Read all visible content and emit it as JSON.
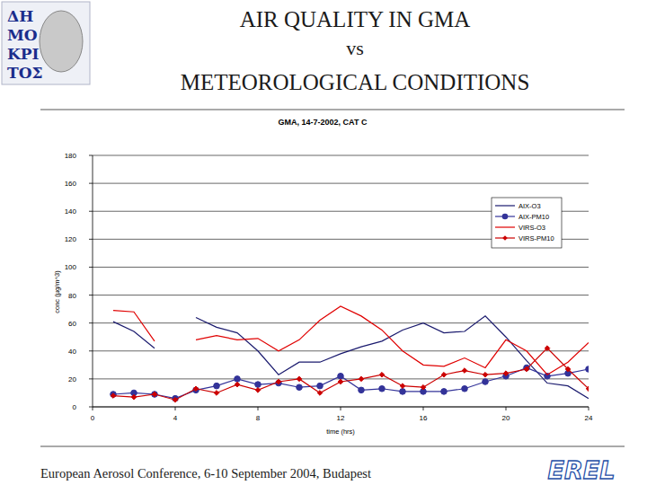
{
  "slide": {
    "title_lines": [
      "AIR QUALITY IN GMA",
      "vs",
      "METEOROLOGICAL CONDITIONS"
    ],
    "logo_text": [
      "ΔΗ",
      "ΜΟ",
      "ΚΡΙ",
      "ΤΟΣ"
    ],
    "footer": "European Aerosol Conference, 6-10 September 2004, Budapest",
    "brand": "EREL"
  },
  "chart_data": {
    "type": "line",
    "title": "GMA, 14-7-2002, CAT C",
    "x_label": "time (hrs)",
    "y_label": "conc (µg/m^3)",
    "x": [
      1,
      2,
      3,
      4,
      5,
      6,
      7,
      8,
      9,
      10,
      11,
      12,
      13,
      14,
      15,
      16,
      17,
      18,
      19,
      20,
      21,
      22,
      23,
      24
    ],
    "series": [
      {
        "name": "AIX-O3",
        "color": "#1a1a6e",
        "marker": "none",
        "line_style": "solid",
        "values": [
          61,
          54,
          42,
          null,
          64,
          57,
          53,
          40,
          23,
          32,
          32,
          38,
          43,
          47,
          55,
          60,
          53,
          54,
          65,
          50,
          33,
          17,
          15,
          6
        ]
      },
      {
        "name": "AIX-PM10",
        "color": "#333399",
        "marker": "circle",
        "line_style": "solid",
        "values": [
          9,
          10,
          9,
          6,
          12,
          15,
          20,
          16,
          17,
          14,
          15,
          22,
          12,
          13,
          11,
          11,
          11,
          13,
          18,
          22,
          28,
          22,
          24,
          27
        ]
      },
      {
        "name": "VIRS-O3",
        "color": "#e00000",
        "marker": "none",
        "line_style": "solid",
        "values": [
          69,
          68,
          47,
          null,
          48,
          51,
          48,
          49,
          40,
          48,
          62,
          72,
          65,
          55,
          40,
          30,
          29,
          35,
          28,
          48,
          40,
          23,
          32,
          46
        ]
      },
      {
        "name": "VIRS-PM10",
        "color": "#cc0000",
        "marker": "diamond",
        "line_style": "solid",
        "values": [
          8,
          7,
          9,
          5,
          13,
          10,
          16,
          12,
          18,
          20,
          10,
          18,
          20,
          23,
          15,
          14,
          23,
          26,
          23,
          24,
          27,
          42,
          27,
          13
        ]
      }
    ],
    "xlim": [
      0,
      24
    ],
    "xticks": [
      0,
      4,
      8,
      12,
      16,
      20,
      24
    ],
    "ylim": [
      0,
      180
    ],
    "yticks": [
      0,
      20,
      40,
      60,
      80,
      100,
      120,
      140,
      160,
      180
    ],
    "grid": true,
    "legend": "upper right"
  }
}
